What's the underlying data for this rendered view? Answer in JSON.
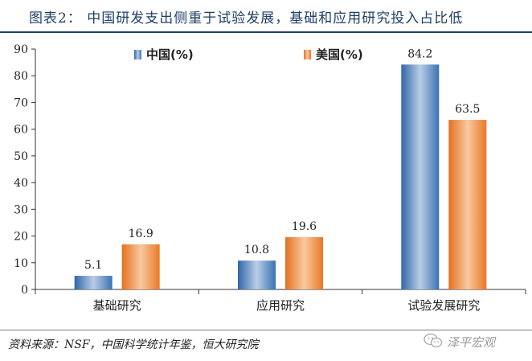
{
  "title": "图表2：  中国研发支出侧重于试验发展，基础和应用研究投入占比低",
  "source": "资料来源：NSF，中国科学统计年鉴，恒大研究院",
  "watermark": "泽平宏观",
  "colors": {
    "china": "#3f78b6",
    "usa": "#ee7d2d",
    "title": "#1f3f66"
  },
  "chart_data": {
    "type": "bar",
    "categories": [
      "基础研究",
      "应用研究",
      "试验发展研究"
    ],
    "series": [
      {
        "name": "中国(%)",
        "values": [
          5.1,
          10.8,
          84.2
        ]
      },
      {
        "name": "美国(%)",
        "values": [
          16.9,
          19.6,
          63.5
        ]
      }
    ],
    "ylim": [
      0,
      90
    ],
    "yticks": [
      0,
      10,
      20,
      30,
      40,
      50,
      60,
      70,
      80,
      90
    ],
    "legend_position": "top",
    "grid": false,
    "data_labels": true
  }
}
